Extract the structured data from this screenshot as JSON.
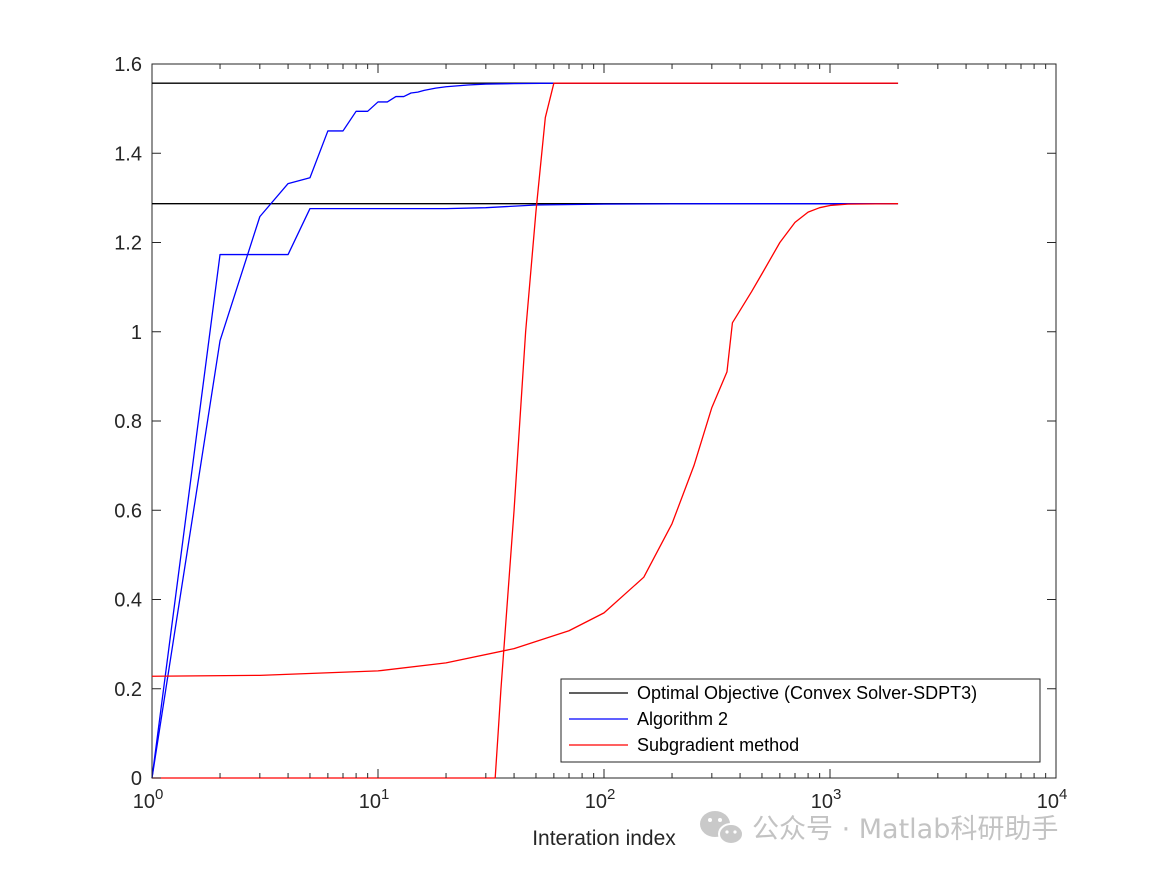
{
  "chart_data": {
    "type": "line",
    "title": "",
    "xlabel": "Interation index",
    "ylabel": "",
    "xscale": "log",
    "xlim": [
      1,
      10000
    ],
    "ylim": [
      0,
      1.6
    ],
    "xticks": [
      {
        "value": 1,
        "base": "10",
        "exp": "0"
      },
      {
        "value": 10,
        "base": "10",
        "exp": "1"
      },
      {
        "value": 100,
        "base": "10",
        "exp": "2"
      },
      {
        "value": 1000,
        "base": "10",
        "exp": "3"
      },
      {
        "value": 10000,
        "base": "10",
        "exp": "4"
      }
    ],
    "yticks": [
      {
        "value": 0,
        "label": "0"
      },
      {
        "value": 0.2,
        "label": "0.2"
      },
      {
        "value": 0.4,
        "label": "0.4"
      },
      {
        "value": 0.6,
        "label": "0.6"
      },
      {
        "value": 0.8,
        "label": "0.8"
      },
      {
        "value": 1,
        "label": "1"
      },
      {
        "value": 1.2,
        "label": "1.2"
      },
      {
        "value": 1.4,
        "label": "1.4"
      },
      {
        "value": 1.6,
        "label": "1.6"
      }
    ],
    "grid": false,
    "legend_position": "bottom-right",
    "legend": [
      {
        "label": "Optimal Objective (Convex Solver-SDPT3)",
        "color": "#000000"
      },
      {
        "label": "Algorithm 2",
        "color": "#0000ff"
      },
      {
        "label": "Subgradient method",
        "color": "#ff0000"
      }
    ],
    "series": [
      {
        "legend_index": 0,
        "color": "#000000",
        "points": [
          [
            1,
            1.557
          ],
          [
            2000,
            1.557
          ]
        ]
      },
      {
        "legend_index": 0,
        "color": "#000000",
        "points": [
          [
            1,
            1.287
          ],
          [
            2000,
            1.287
          ]
        ]
      },
      {
        "legend_index": 1,
        "color": "#0000ff",
        "points": [
          [
            1,
            0
          ],
          [
            2,
            1.173
          ],
          [
            3,
            1.173
          ],
          [
            4,
            1.173
          ],
          [
            5,
            1.276
          ],
          [
            10,
            1.276
          ],
          [
            20,
            1.276
          ],
          [
            30,
            1.278
          ],
          [
            50,
            1.284
          ],
          [
            100,
            1.286
          ],
          [
            300,
            1.287
          ],
          [
            2000,
            1.287
          ]
        ]
      },
      {
        "legend_index": 1,
        "color": "#0000ff",
        "points": [
          [
            1,
            0
          ],
          [
            2,
            0.98
          ],
          [
            3,
            1.258
          ],
          [
            4,
            1.332
          ],
          [
            5,
            1.345
          ],
          [
            6,
            1.45
          ],
          [
            7,
            1.45
          ],
          [
            8,
            1.494
          ],
          [
            9,
            1.494
          ],
          [
            10,
            1.515
          ],
          [
            11,
            1.515
          ],
          [
            12,
            1.527
          ],
          [
            13,
            1.527
          ],
          [
            14,
            1.535
          ],
          [
            15,
            1.537
          ],
          [
            16,
            1.541
          ],
          [
            18,
            1.546
          ],
          [
            20,
            1.549
          ],
          [
            25,
            1.553
          ],
          [
            30,
            1.555
          ],
          [
            40,
            1.556
          ],
          [
            60,
            1.557
          ],
          [
            2000,
            1.557
          ]
        ]
      },
      {
        "legend_index": 2,
        "color": "#ff0000",
        "points": [
          [
            1,
            0
          ],
          [
            33,
            0
          ],
          [
            34,
            0.1
          ],
          [
            35,
            0.2
          ],
          [
            40,
            0.6
          ],
          [
            45,
            1.0
          ],
          [
            50,
            1.27
          ],
          [
            55,
            1.48
          ],
          [
            60,
            1.557
          ],
          [
            2000,
            1.557
          ]
        ]
      },
      {
        "legend_index": 2,
        "color": "#ff0000",
        "points": [
          [
            1,
            0.228
          ],
          [
            3,
            0.23
          ],
          [
            10,
            0.24
          ],
          [
            20,
            0.258
          ],
          [
            40,
            0.29
          ],
          [
            70,
            0.33
          ],
          [
            100,
            0.37
          ],
          [
            150,
            0.45
          ],
          [
            200,
            0.57
          ],
          [
            250,
            0.7
          ],
          [
            300,
            0.83
          ],
          [
            350,
            0.91
          ],
          [
            370,
            1.02
          ],
          [
            450,
            1.09
          ],
          [
            500,
            1.13
          ],
          [
            600,
            1.2
          ],
          [
            700,
            1.245
          ],
          [
            800,
            1.268
          ],
          [
            900,
            1.278
          ],
          [
            1000,
            1.283
          ],
          [
            1200,
            1.286
          ],
          [
            2000,
            1.287
          ]
        ]
      }
    ]
  },
  "watermark": {
    "icon": "wechat-icon",
    "text": "公众号 · Matlab科研助手"
  }
}
